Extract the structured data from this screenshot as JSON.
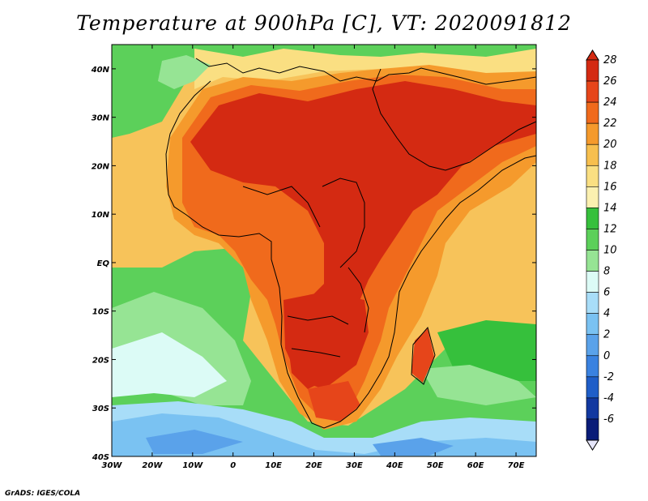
{
  "title": "Temperature at 900hPa [C], VT: 2020091812",
  "footer": "GrADS: IGES/COLA",
  "map": {
    "projection": "lat-lon",
    "lon_range": [
      -30,
      75
    ],
    "lat_range": [
      -40,
      45
    ],
    "lon_ticks": [
      "30W",
      "20W",
      "10W",
      "0",
      "10E",
      "20E",
      "30E",
      "40E",
      "50E",
      "60E",
      "70E"
    ],
    "lat_ticks": [
      "40N",
      "30N",
      "20N",
      "10N",
      "EQ",
      "10S",
      "20S",
      "30S",
      "40S"
    ],
    "variable": "Temperature at 900hPa",
    "units": "C",
    "valid_time": "2020091812"
  },
  "colorbar": {
    "labels": [
      "28",
      "26",
      "24",
      "22",
      "20",
      "18",
      "16",
      "14",
      "12",
      "10",
      "8",
      "6",
      "4",
      "2",
      "0",
      "-2",
      "-4",
      "-6"
    ],
    "colors": [
      "#d42a12",
      "#e6451a",
      "#f06a1c",
      "#f59a2c",
      "#f7bf4e",
      "#fadf82",
      "#fbf0b0",
      "#36c03c",
      "#5cd05a",
      "#96e494",
      "#dcfbf6",
      "#a8ddf8",
      "#7ac2f2",
      "#5aa2ea",
      "#3a82e0",
      "#1f5ec8",
      "#1238a0",
      "#0a1c78"
    ]
  }
}
